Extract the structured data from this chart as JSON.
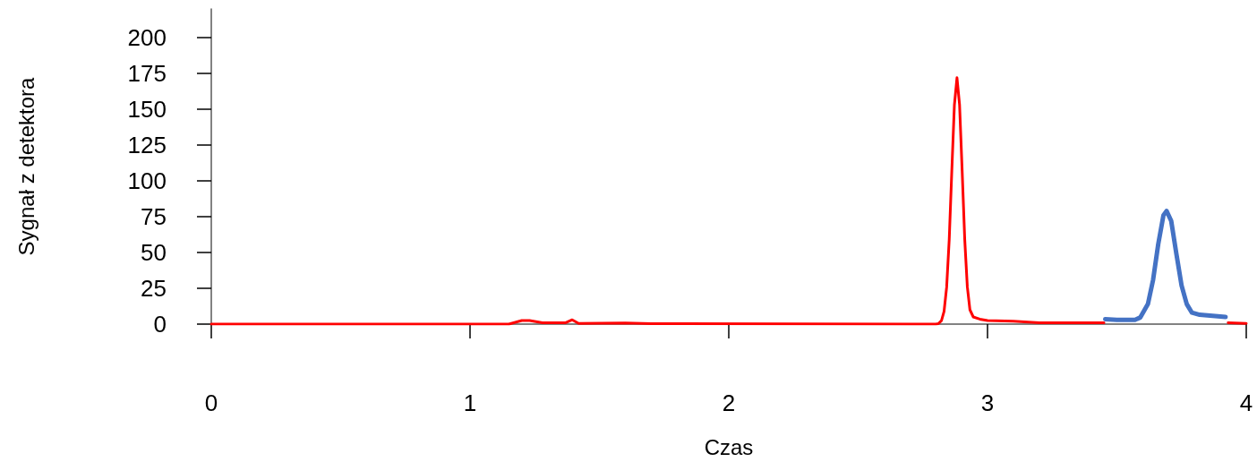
{
  "chart_data": {
    "type": "line",
    "xlabel": "Czas",
    "ylabel": "Sygnał z detektora",
    "xlim": [
      0,
      4
    ],
    "xticks": [
      0,
      1,
      2,
      3,
      4
    ],
    "ylim": [
      0,
      220
    ],
    "yticks": [
      0,
      25,
      50,
      75,
      100,
      125,
      150,
      175,
      200
    ],
    "grid": false,
    "marker": "none",
    "line_style": "solid",
    "series": [
      {
        "color": "#ff0000",
        "x": [
          0,
          1.15,
          1.2,
          1.23,
          1.28,
          1.37,
          1.395,
          1.42,
          1.6,
          1.7,
          2.8,
          2.81,
          2.822,
          2.832,
          2.842,
          2.852,
          2.862,
          2.872,
          2.882,
          2.892,
          2.902,
          2.912,
          2.922,
          2.932,
          2.945,
          2.97,
          3.0,
          3.1,
          3.2,
          3.45
        ],
        "values": [
          0,
          0,
          2.5,
          2.5,
          1,
          1,
          3,
          0.5,
          0.8,
          0.3,
          0,
          0.3,
          2.4,
          8.8,
          25.7,
          59,
          107,
          153,
          172,
          153,
          107,
          59,
          26,
          10,
          5,
          3.5,
          2.5,
          2,
          1,
          1
        ]
      },
      {
        "color": "#4472c4",
        "x": [
          3.455,
          3.5,
          3.57,
          3.59,
          3.62,
          3.64,
          3.66,
          3.68,
          3.692,
          3.71,
          3.73,
          3.75,
          3.77,
          3.79,
          3.82,
          3.92
        ],
        "values": [
          3.5,
          3,
          3,
          4.6,
          14,
          31,
          56,
          76,
          79,
          72,
          49,
          27,
          14,
          8,
          6.5,
          5
        ]
      },
      {
        "color": "#ff0000",
        "x": [
          3.93,
          4.0
        ],
        "values": [
          1,
          0.5
        ]
      }
    ]
  }
}
